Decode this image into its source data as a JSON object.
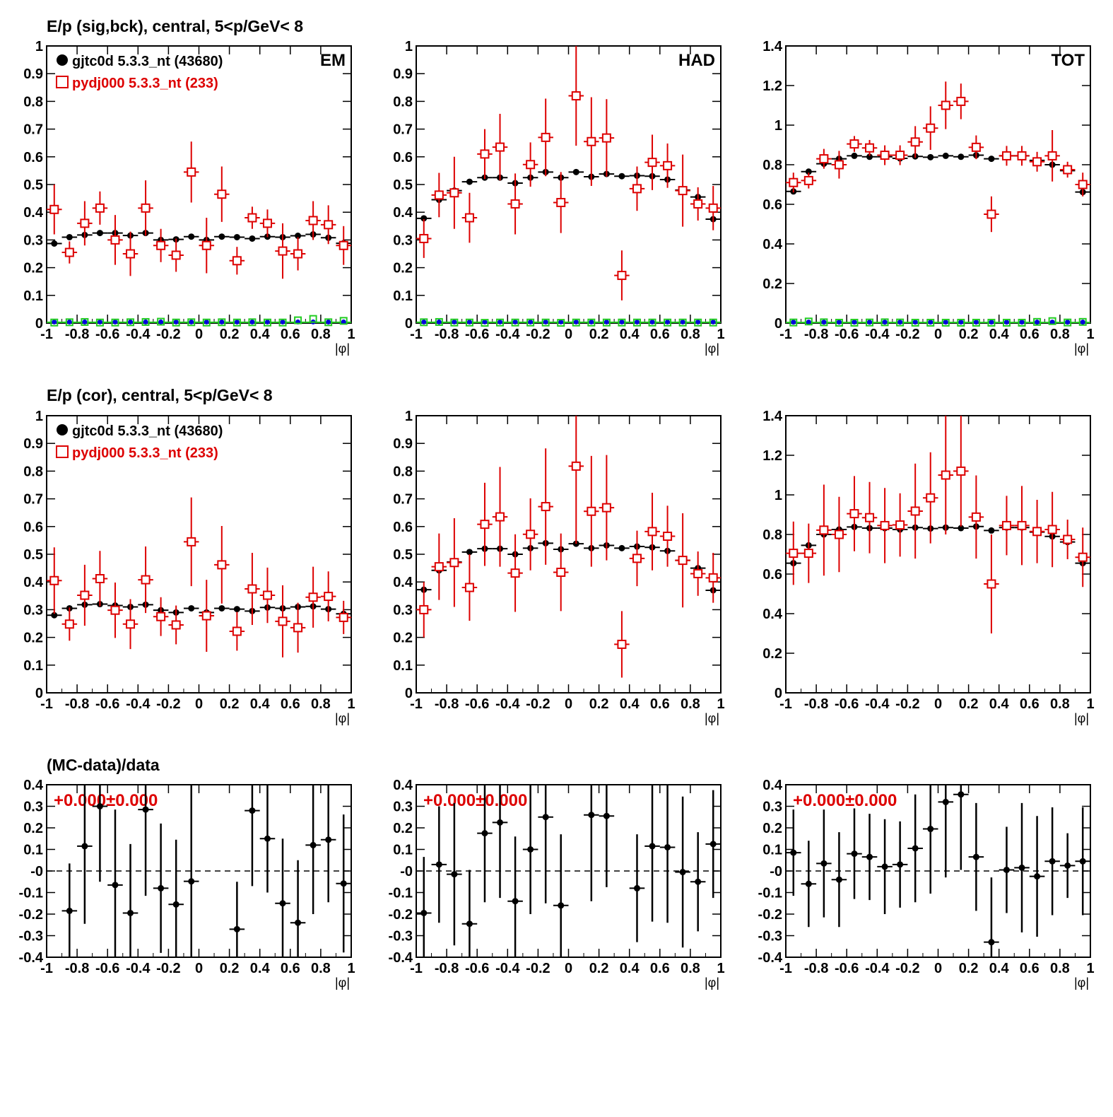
{
  "row_titles": [
    "E/p (sig,bck), central,  5<p/GeV< 8",
    "E/p (cor), central,  5<p/GeV< 8",
    "(MC-data)/data"
  ],
  "legend": [
    {
      "label": "gjtc0d 5.3.3_nt (43680)",
      "color": "#000000",
      "marker": "circle"
    },
    {
      "label": "pydj000 5.3.3_nt (233)",
      "color": "#dd0000",
      "marker": "open-square"
    }
  ],
  "colors": {
    "data": "#000000",
    "mc": "#dd0000",
    "bck_data": "#0000dd",
    "bck_mc": "#22cc22",
    "text_red": "#dd0000"
  },
  "xlabel": "|φ|",
  "x_ticks": [
    "-1",
    "-0.8",
    "-0.6",
    "-0.4",
    "-0.2",
    "0",
    "0.2",
    "0.4",
    "0.6",
    "0.8",
    "1"
  ],
  "ratio_text": "+0.000±0.000",
  "chart_data": [
    {
      "type": "scatter",
      "panel": "EM sig,bck",
      "label": "EM",
      "xlim": [
        -1,
        1
      ],
      "ylim": [
        0,
        1
      ],
      "y_ticks": [
        "0",
        "0.1",
        "0.2",
        "0.3",
        "0.4",
        "0.5",
        "0.6",
        "0.7",
        "0.8",
        "0.9",
        "1"
      ],
      "x": [
        -0.95,
        -0.85,
        -0.75,
        -0.65,
        -0.55,
        -0.45,
        -0.35,
        -0.25,
        -0.15,
        -0.05,
        0.05,
        0.15,
        0.25,
        0.35,
        0.45,
        0.55,
        0.65,
        0.75,
        0.85,
        0.95
      ],
      "series": [
        {
          "name": "gjtc0d 5.3.3_nt (43680)",
          "values": [
            0.287,
            0.31,
            0.318,
            0.325,
            0.325,
            0.316,
            0.325,
            0.3,
            0.302,
            0.312,
            0.3,
            0.312,
            0.31,
            0.305,
            0.312,
            0.31,
            0.315,
            0.32,
            0.308,
            0.288
          ]
        },
        {
          "name": "pydj000 5.3.3_nt (233)",
          "values": [
            0.41,
            0.255,
            0.36,
            0.415,
            0.3,
            0.25,
            0.415,
            0.28,
            0.245,
            0.545,
            0.28,
            0.465,
            0.225,
            0.38,
            0.36,
            0.26,
            0.25,
            0.37,
            0.355,
            0.28
          ],
          "errors": [
            0.09,
            0.04,
            0.08,
            0.06,
            0.09,
            0.08,
            0.1,
            0.06,
            0.06,
            0.11,
            0.1,
            0.1,
            0.05,
            0.04,
            0.05,
            0.1,
            0.06,
            0.07,
            0.07,
            0.07
          ]
        },
        {
          "name": "bck data",
          "values": [
            0.004,
            0.004,
            0.004,
            0.004,
            0.004,
            0.004,
            0.004,
            0.004,
            0.004,
            0.004,
            0.004,
            0.004,
            0.004,
            0.004,
            0.004,
            0.004,
            0.004,
            0.004,
            0.004,
            0.004
          ]
        },
        {
          "name": "bck mc",
          "values": [
            0.002,
            0.003,
            0.004,
            0.002,
            0.002,
            0.003,
            0.004,
            0.005,
            0.002,
            0.003,
            0.002,
            0.003,
            0.002,
            0.003,
            0.002,
            0.002,
            0.01,
            0.015,
            0.003,
            0.008
          ]
        }
      ]
    },
    {
      "type": "scatter",
      "panel": "HAD sig,bck",
      "label": "HAD",
      "xlim": [
        -1,
        1
      ],
      "ylim": [
        0,
        1
      ],
      "y_ticks": [
        "0",
        "0.1",
        "0.2",
        "0.3",
        "0.4",
        "0.5",
        "0.6",
        "0.7",
        "0.8",
        "0.9",
        "1"
      ],
      "x": [
        -0.95,
        -0.85,
        -0.75,
        -0.65,
        -0.55,
        -0.45,
        -0.35,
        -0.25,
        -0.15,
        -0.05,
        0.05,
        0.15,
        0.25,
        0.35,
        0.45,
        0.55,
        0.65,
        0.75,
        0.85,
        0.95
      ],
      "series": [
        {
          "name": "gjtc0d 5.3.3_nt (43680)",
          "values": [
            0.378,
            0.445,
            0.478,
            0.51,
            0.525,
            0.525,
            0.505,
            0.525,
            0.545,
            0.525,
            0.545,
            0.528,
            0.538,
            0.53,
            0.532,
            0.53,
            0.518,
            0.48,
            0.455,
            0.375
          ]
        },
        {
          "name": "pydj000 5.3.3_nt (233)",
          "values": [
            0.305,
            0.462,
            0.47,
            0.38,
            0.61,
            0.635,
            0.43,
            0.572,
            0.67,
            0.435,
            0.82,
            0.655,
            0.668,
            0.172,
            0.485,
            0.58,
            0.568,
            0.478,
            0.43,
            0.415
          ],
          "errors": [
            0.07,
            0.08,
            0.13,
            0.09,
            0.09,
            0.12,
            0.11,
            0.08,
            0.14,
            0.11,
            0.18,
            0.16,
            0.14,
            0.09,
            0.08,
            0.1,
            0.08,
            0.13,
            0.06,
            0.08
          ]
        },
        {
          "name": "bck data",
          "values": [
            0.004,
            0.004,
            0.004,
            0.004,
            0.004,
            0.004,
            0.004,
            0.004,
            0.004,
            0.004,
            0.004,
            0.004,
            0.004,
            0.004,
            0.004,
            0.004,
            0.004,
            0.004,
            0.004,
            0.004
          ]
        },
        {
          "name": "bck mc",
          "values": [
            0.003,
            0.004,
            0.002,
            0.002,
            0.001,
            0.002,
            0.002,
            0.002,
            0.002,
            0.001,
            0.002,
            0.002,
            0.002,
            0.002,
            0.002,
            0.002,
            0.002,
            0.002,
            0.002,
            0.002
          ]
        }
      ]
    },
    {
      "type": "scatter",
      "panel": "TOT sig,bck",
      "label": "TOT",
      "xlim": [
        -1,
        1
      ],
      "ylim": [
        0,
        1.4
      ],
      "y_ticks": [
        "0",
        "0.2",
        "0.4",
        "0.6",
        "0.8",
        "1",
        "1.2",
        "1.4"
      ],
      "x": [
        -0.95,
        -0.85,
        -0.75,
        -0.65,
        -0.55,
        -0.45,
        -0.35,
        -0.25,
        -0.15,
        -0.05,
        0.05,
        0.15,
        0.25,
        0.35,
        0.45,
        0.55,
        0.65,
        0.75,
        0.85,
        0.95
      ],
      "series": [
        {
          "name": "gjtc0d 5.3.3_nt (43680)",
          "values": [
            0.665,
            0.765,
            0.805,
            0.83,
            0.845,
            0.84,
            0.84,
            0.832,
            0.842,
            0.838,
            0.845,
            0.84,
            0.848,
            0.83,
            0.845,
            0.845,
            0.822,
            0.8,
            0.77,
            0.662
          ]
        },
        {
          "name": "pydj000 5.3.3_nt (233)",
          "values": [
            0.71,
            0.72,
            0.83,
            0.8,
            0.905,
            0.885,
            0.848,
            0.848,
            0.915,
            0.985,
            1.1,
            1.12,
            0.888,
            0.55,
            0.845,
            0.845,
            0.815,
            0.845,
            0.775,
            0.7
          ],
          "errors": [
            0.05,
            0.04,
            0.05,
            0.07,
            0.04,
            0.04,
            0.05,
            0.05,
            0.08,
            0.11,
            0.12,
            0.09,
            0.06,
            0.09,
            0.05,
            0.05,
            0.05,
            0.13,
            0.04,
            0.06
          ]
        },
        {
          "name": "bck data",
          "values": [
            0.005,
            0.005,
            0.005,
            0.005,
            0.005,
            0.005,
            0.005,
            0.005,
            0.005,
            0.005,
            0.005,
            0.005,
            0.005,
            0.005,
            0.005,
            0.005,
            0.005,
            0.005,
            0.005,
            0.005
          ]
        },
        {
          "name": "bck mc",
          "values": [
            0.003,
            0.008,
            0.004,
            0.002,
            0.002,
            0.003,
            0.004,
            0.003,
            0.002,
            0.002,
            0.002,
            0.002,
            0.002,
            0.002,
            0.002,
            0.002,
            0.006,
            0.01,
            0.003,
            0.006
          ]
        }
      ]
    },
    {
      "type": "scatter",
      "panel": "EM cor",
      "xlim": [
        -1,
        1
      ],
      "ylim": [
        0,
        1
      ],
      "y_ticks": [
        "0",
        "0.1",
        "0.2",
        "0.3",
        "0.4",
        "0.5",
        "0.6",
        "0.7",
        "0.8",
        "0.9",
        "1"
      ],
      "x": [
        -0.95,
        -0.85,
        -0.75,
        -0.65,
        -0.55,
        -0.45,
        -0.35,
        -0.25,
        -0.15,
        -0.05,
        0.05,
        0.15,
        0.25,
        0.35,
        0.45,
        0.55,
        0.65,
        0.75,
        0.85,
        0.95
      ],
      "series": [
        {
          "name": "gjtc0d 5.3.3_nt (43680)",
          "values": [
            0.28,
            0.305,
            0.318,
            0.32,
            0.315,
            0.31,
            0.318,
            0.298,
            0.29,
            0.305,
            0.29,
            0.305,
            0.302,
            0.295,
            0.308,
            0.305,
            0.31,
            0.312,
            0.302,
            0.285
          ]
        },
        {
          "name": "pydj000 5.3.3_nt (233)",
          "values": [
            0.405,
            0.248,
            0.352,
            0.412,
            0.298,
            0.248,
            0.408,
            0.275,
            0.245,
            0.545,
            0.278,
            0.462,
            0.222,
            0.375,
            0.352,
            0.258,
            0.235,
            0.345,
            0.348,
            0.272
          ],
          "errors": [
            0.12,
            0.06,
            0.11,
            0.1,
            0.1,
            0.09,
            0.12,
            0.07,
            0.07,
            0.16,
            0.13,
            0.14,
            0.07,
            0.13,
            0.1,
            0.13,
            0.09,
            0.11,
            0.09,
            0.06
          ]
        }
      ]
    },
    {
      "type": "scatter",
      "panel": "HAD cor",
      "xlim": [
        -1,
        1
      ],
      "ylim": [
        0,
        1
      ],
      "y_ticks": [
        "0",
        "0.1",
        "0.2",
        "0.3",
        "0.4",
        "0.5",
        "0.6",
        "0.7",
        "0.8",
        "0.9",
        "1"
      ],
      "x": [
        -0.95,
        -0.85,
        -0.75,
        -0.65,
        -0.55,
        -0.45,
        -0.35,
        -0.25,
        -0.15,
        -0.05,
        0.05,
        0.15,
        0.25,
        0.35,
        0.45,
        0.55,
        0.65,
        0.75,
        0.85,
        0.95
      ],
      "series": [
        {
          "name": "gjtc0d 5.3.3_nt (43680)",
          "values": [
            0.372,
            0.442,
            0.472,
            0.508,
            0.52,
            0.52,
            0.5,
            0.522,
            0.54,
            0.518,
            0.538,
            0.522,
            0.532,
            0.522,
            0.528,
            0.525,
            0.512,
            0.478,
            0.45,
            0.37
          ]
        },
        {
          "name": "pydj000 5.3.3_nt (233)",
          "values": [
            0.3,
            0.455,
            0.47,
            0.38,
            0.608,
            0.635,
            0.432,
            0.572,
            0.672,
            0.435,
            0.818,
            0.655,
            0.668,
            0.175,
            0.485,
            0.582,
            0.565,
            0.478,
            0.43,
            0.415
          ],
          "errors": [
            0.1,
            0.12,
            0.16,
            0.12,
            0.15,
            0.18,
            0.14,
            0.13,
            0.21,
            0.14,
            0.28,
            0.2,
            0.19,
            0.12,
            0.1,
            0.14,
            0.11,
            0.17,
            0.08,
            0.09
          ]
        }
      ]
    },
    {
      "type": "scatter",
      "panel": "TOT cor",
      "xlim": [
        -1,
        1
      ],
      "ylim": [
        0,
        1.4
      ],
      "y_ticks": [
        "0",
        "0.2",
        "0.4",
        "0.6",
        "0.8",
        "1",
        "1.2",
        "1.4"
      ],
      "x": [
        -0.95,
        -0.85,
        -0.75,
        -0.65,
        -0.55,
        -0.45,
        -0.35,
        -0.25,
        -0.15,
        -0.05,
        0.05,
        0.15,
        0.25,
        0.35,
        0.45,
        0.55,
        0.65,
        0.75,
        0.85,
        0.95
      ],
      "series": [
        {
          "name": "gjtc0d 5.3.3_nt (43680)",
          "values": [
            0.655,
            0.745,
            0.8,
            0.825,
            0.838,
            0.832,
            0.832,
            0.825,
            0.835,
            0.83,
            0.835,
            0.832,
            0.84,
            0.82,
            0.835,
            0.835,
            0.812,
            0.79,
            0.762,
            0.655
          ]
        },
        {
          "name": "pydj000 5.3.3_nt (233)",
          "values": [
            0.705,
            0.705,
            0.822,
            0.8,
            0.905,
            0.885,
            0.845,
            0.848,
            0.918,
            0.985,
            1.1,
            1.12,
            0.888,
            0.55,
            0.845,
            0.845,
            0.815,
            0.825,
            0.775,
            0.685
          ],
          "errors": [
            0.16,
            0.15,
            0.23,
            0.19,
            0.19,
            0.18,
            0.19,
            0.16,
            0.24,
            0.23,
            0.3,
            0.28,
            0.21,
            0.25,
            0.15,
            0.2,
            0.16,
            0.19,
            0.1,
            0.15
          ]
        }
      ]
    },
    {
      "type": "scatter",
      "panel": "EM ratio",
      "xlim": [
        -1,
        1
      ],
      "ylim": [
        -0.4,
        0.4
      ],
      "y_ticks": [
        "-0.4",
        "-0.3",
        "-0.2",
        "-0.1",
        "-0",
        "0.1",
        "0.2",
        "0.3",
        "0.4"
      ],
      "x": [
        -0.85,
        -0.75,
        -0.65,
        -0.55,
        -0.45,
        -0.35,
        -0.25,
        -0.15,
        -0.05,
        0.25,
        0.35,
        0.45,
        0.55,
        0.65,
        0.75,
        0.85,
        0.95
      ],
      "series": [
        {
          "name": "(MC-data)/data",
          "values": [
            -0.185,
            0.115,
            0.3,
            -0.065,
            -0.195,
            0.285,
            -0.08,
            -0.155,
            -0.048,
            -0.27,
            0.28,
            0.15,
            -0.15,
            -0.24,
            0.12,
            0.145,
            -0.058
          ],
          "errors": [
            0.22,
            0.36,
            0.35,
            0.35,
            0.32,
            0.4,
            0.3,
            0.3,
            0.5,
            0.22,
            0.35,
            0.25,
            0.3,
            0.29,
            0.32,
            0.29,
            0.32
          ]
        }
      ]
    },
    {
      "type": "scatter",
      "panel": "HAD ratio",
      "xlim": [
        -1,
        1
      ],
      "ylim": [
        -0.4,
        0.4
      ],
      "y_ticks": [
        "-0.4",
        "-0.3",
        "-0.2",
        "-0.1",
        "-0",
        "0.1",
        "0.2",
        "0.3",
        "0.4"
      ],
      "x": [
        -0.95,
        -0.85,
        -0.75,
        -0.65,
        -0.55,
        -0.45,
        -0.35,
        -0.25,
        -0.15,
        -0.05,
        0.15,
        0.25,
        0.45,
        0.55,
        0.65,
        0.75,
        0.85,
        0.95
      ],
      "series": [
        {
          "name": "(MC-data)/data",
          "values": [
            -0.195,
            0.03,
            -0.015,
            -0.245,
            0.175,
            0.225,
            -0.14,
            0.1,
            0.25,
            -0.16,
            0.26,
            0.255,
            -0.08,
            0.115,
            0.11,
            -0.005,
            -0.05,
            0.125
          ],
          "errors": [
            0.26,
            0.27,
            0.33,
            0.25,
            0.32,
            0.35,
            0.3,
            0.3,
            0.4,
            0.33,
            0.4,
            0.33,
            0.25,
            0.35,
            0.35,
            0.35,
            0.23,
            0.25
          ]
        }
      ]
    },
    {
      "type": "scatter",
      "panel": "TOT ratio",
      "xlim": [
        -1,
        1
      ],
      "ylim": [
        -0.4,
        0.4
      ],
      "y_ticks": [
        "-0.4",
        "-0.3",
        "-0.2",
        "-0.1",
        "-0",
        "0.1",
        "0.2",
        "0.3",
        "0.4"
      ],
      "x": [
        -0.95,
        -0.85,
        -0.75,
        -0.65,
        -0.55,
        -0.45,
        -0.35,
        -0.25,
        -0.15,
        -0.05,
        0.05,
        0.15,
        0.25,
        0.35,
        0.45,
        0.55,
        0.65,
        0.75,
        0.85,
        0.95
      ],
      "series": [
        {
          "name": "(MC-data)/data",
          "values": [
            0.085,
            -0.06,
            0.035,
            -0.04,
            0.08,
            0.065,
            0.02,
            0.03,
            0.105,
            0.195,
            0.32,
            0.355,
            0.065,
            -0.33,
            0.005,
            0.015,
            -0.025,
            0.045,
            0.025,
            0.045
          ],
          "errors": [
            0.2,
            0.2,
            0.25,
            0.22,
            0.21,
            0.2,
            0.22,
            0.2,
            0.25,
            0.3,
            0.35,
            0.35,
            0.25,
            0.3,
            0.2,
            0.3,
            0.28,
            0.25,
            0.15,
            0.25
          ]
        }
      ]
    }
  ]
}
